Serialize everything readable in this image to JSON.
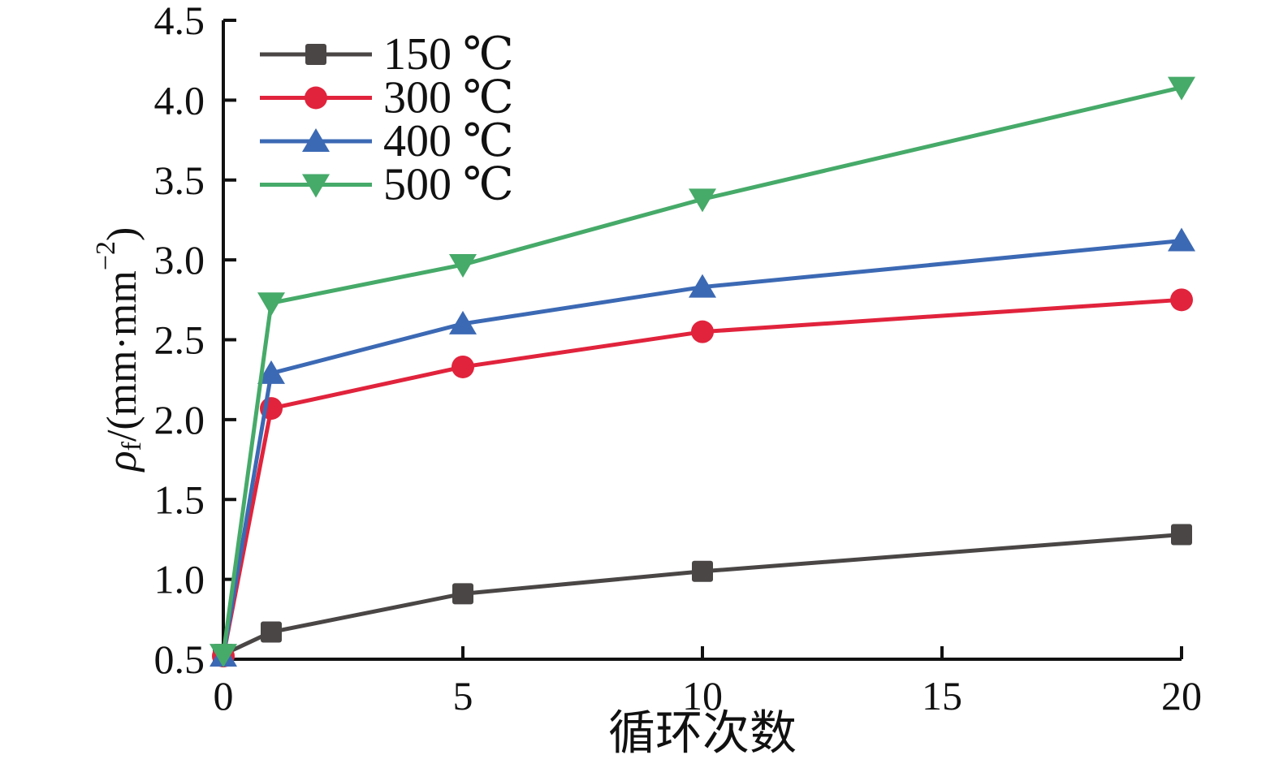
{
  "figure": {
    "background": "#ffffff",
    "axis_color": "#111111",
    "text_color": "#111111"
  },
  "chart_data": {
    "type": "line",
    "title": "",
    "xlabel": "循环次数",
    "ylabel": {
      "rho": "ρ",
      "rho_sub": "f",
      "mid": "/(mm·mm",
      "sup": "−2",
      "end": ")"
    },
    "x": [
      0,
      1,
      5,
      10,
      20
    ],
    "xlim": [
      0,
      20
    ],
    "ylim": [
      0.5,
      4.5
    ],
    "x_ticks": [
      "0",
      "5",
      "10",
      "15",
      "20"
    ],
    "y_ticks": [
      "0.5",
      "1.0",
      "1.5",
      "2.0",
      "2.5",
      "3.0",
      "3.5",
      "4.0",
      "4.5"
    ],
    "grid": false,
    "legend_position": "top-left-inside",
    "series": [
      {
        "name": "150 ℃",
        "color": "#4a4646",
        "marker": "square",
        "values": [
          0.53,
          0.67,
          0.91,
          1.05,
          1.28
        ]
      },
      {
        "name": "300 ℃",
        "color": "#e1233c",
        "marker": "circle",
        "values": [
          0.52,
          2.07,
          2.33,
          2.55,
          2.75
        ]
      },
      {
        "name": "400 ℃",
        "color": "#3c69b4",
        "marker": "triangle-up",
        "values": [
          0.52,
          2.29,
          2.6,
          2.83,
          3.12
        ]
      },
      {
        "name": "500 ℃",
        "color": "#46aa69",
        "marker": "triangle-down",
        "values": [
          0.53,
          2.73,
          2.97,
          3.38,
          4.08
        ]
      }
    ]
  }
}
